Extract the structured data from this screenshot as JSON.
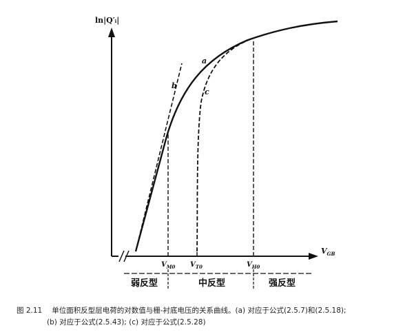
{
  "figure": {
    "y_axis_label": "ln|Q′ᵢ|",
    "x_axis_label": "V_GB",
    "x_axis_label_main": "V",
    "x_axis_label_sub": "GB",
    "ticks": [
      {
        "main": "V",
        "sub": "M0"
      },
      {
        "main": "V",
        "sub": "T0"
      },
      {
        "main": "V",
        "sub": "H0"
      }
    ],
    "curve_labels": {
      "a": "a",
      "b": "b",
      "c": "c"
    },
    "regions": [
      "弱反型",
      "中反型",
      "强反型"
    ]
  },
  "caption": {
    "number": "图 2.11",
    "line1": "单位面积反型层电荷的对数值与栅-衬底电压的关系曲线。(a) 对应于公式(2.5.7)和(2.5.18);",
    "line2": "(b) 对应于公式(2.5.43); (c) 对应于公式(2.5.28)"
  }
}
